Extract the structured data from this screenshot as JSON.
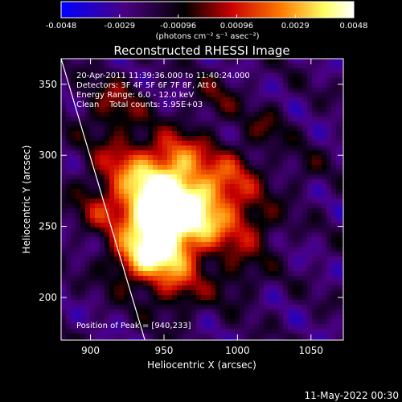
{
  "chart_data": {
    "type": "heatmap",
    "title": "Reconstructed RHESSI Image",
    "xlabel": "Heliocentric X (arcsec)",
    "ylabel": "Heliocentric Y (arcsec)",
    "xlim": [
      880,
      1072
    ],
    "ylim": [
      170,
      368
    ],
    "xticks": [
      900,
      950,
      1000,
      1050
    ],
    "yticks": [
      200,
      250,
      300,
      350
    ],
    "colorbar": {
      "min": -0.0048,
      "max": 0.0048,
      "ticks": [
        "-0.0048",
        "-0.0029",
        "-0.00096",
        "0.00096",
        "0.0029",
        "0.0048"
      ],
      "unit_label": "(photons cm⁻² s⁻¹ asec⁻²)",
      "colormap": [
        "#0000ff",
        "#4b0082",
        "#000000",
        "#c80000",
        "#ff7800",
        "#ffff64",
        "#ffffff"
      ]
    },
    "annotations": [
      "20-Apr-2011 11:39:36.000 to 11:40:24.000",
      "Detectors: 3F 4F 5F 6F 7F 8F, Att 0",
      "Energy Range: 6.0 - 12.0 keV",
      "Clean    Total counts: 5.95E+03"
    ],
    "peak_label": "Position of Peak = [940,233]",
    "peak": [
      940,
      233
    ],
    "limb_line": [
      [
        880,
        368
      ],
      [
        937,
        170
      ]
    ],
    "grid": false
  },
  "footer": {
    "timestamp": "11-May-2022 00:30"
  }
}
